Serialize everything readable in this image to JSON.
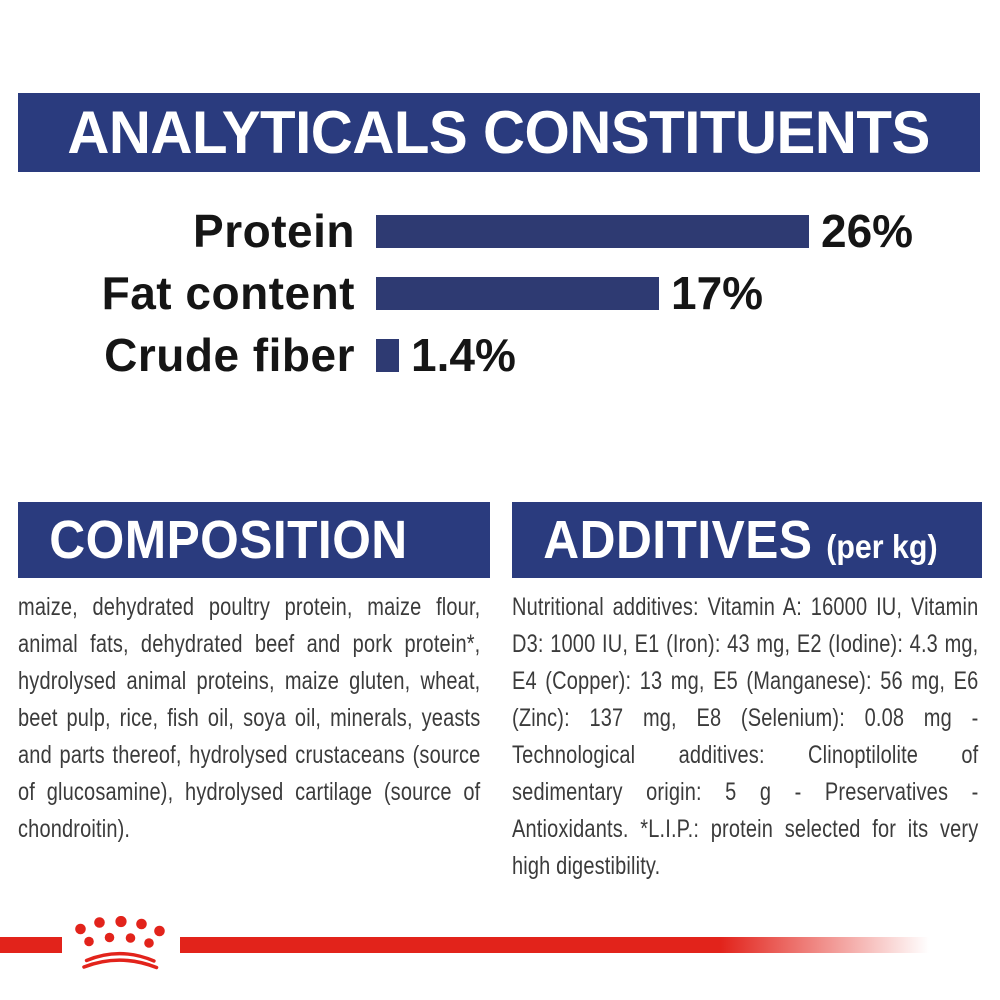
{
  "header": {
    "title": "ANALYTICALS CONSTITUENTS"
  },
  "chart_data": {
    "type": "bar",
    "orientation": "horizontal",
    "title": "ANALYTICALS CONSTITUENTS",
    "categories": [
      "Protein",
      "Fat content",
      "Crude fiber"
    ],
    "values": [
      26,
      17,
      1.4
    ],
    "value_labels": [
      "26%",
      "17%",
      "1.4%"
    ],
    "unit": "%",
    "xlim": [
      0,
      26
    ],
    "bar_color": "#2e3a72",
    "grid": false,
    "legend": "none"
  },
  "composition": {
    "title": "COMPOSITION",
    "body": "maize, dehydrated poultry protein, maize flour, animal fats, dehydrated beef and pork protein*, hydrolysed animal proteins, maize gluten, wheat, beet pulp, rice, fish oil, soya oil, minerals, yeasts and parts thereof, hydrolysed crustaceans (source of glucosamine), hydrolysed cartilage (source of chondroitin)."
  },
  "additives": {
    "title": "ADDITIVES",
    "title_suffix": "(per kg)",
    "body": "Nutritional additives: Vitamin A: 16000 IU, Vitamin D3: 1000 IU, E1 (Iron): 43 mg, E2 (Iodine): 4.3 mg, E4 (Copper): 13 mg, E5 (Manganese): 56 mg, E6 (Zinc): 137 mg, E8 (Selenium): 0.08 mg - Technological additives: Clinoptilolite of sedimentary origin: 5 g - Preservatives - Antioxidants. *L.I.P.: protein selected for its very high digestibility."
  },
  "footer": {
    "brand_mark": "royal-canin-crown"
  },
  "colors": {
    "banner_navy": "#2a3b7e",
    "bar_navy": "#2e3a72",
    "brand_red": "#e2231b",
    "body_text": "#3b3b3b",
    "label_text": "#151515",
    "background": "#ffffff"
  }
}
